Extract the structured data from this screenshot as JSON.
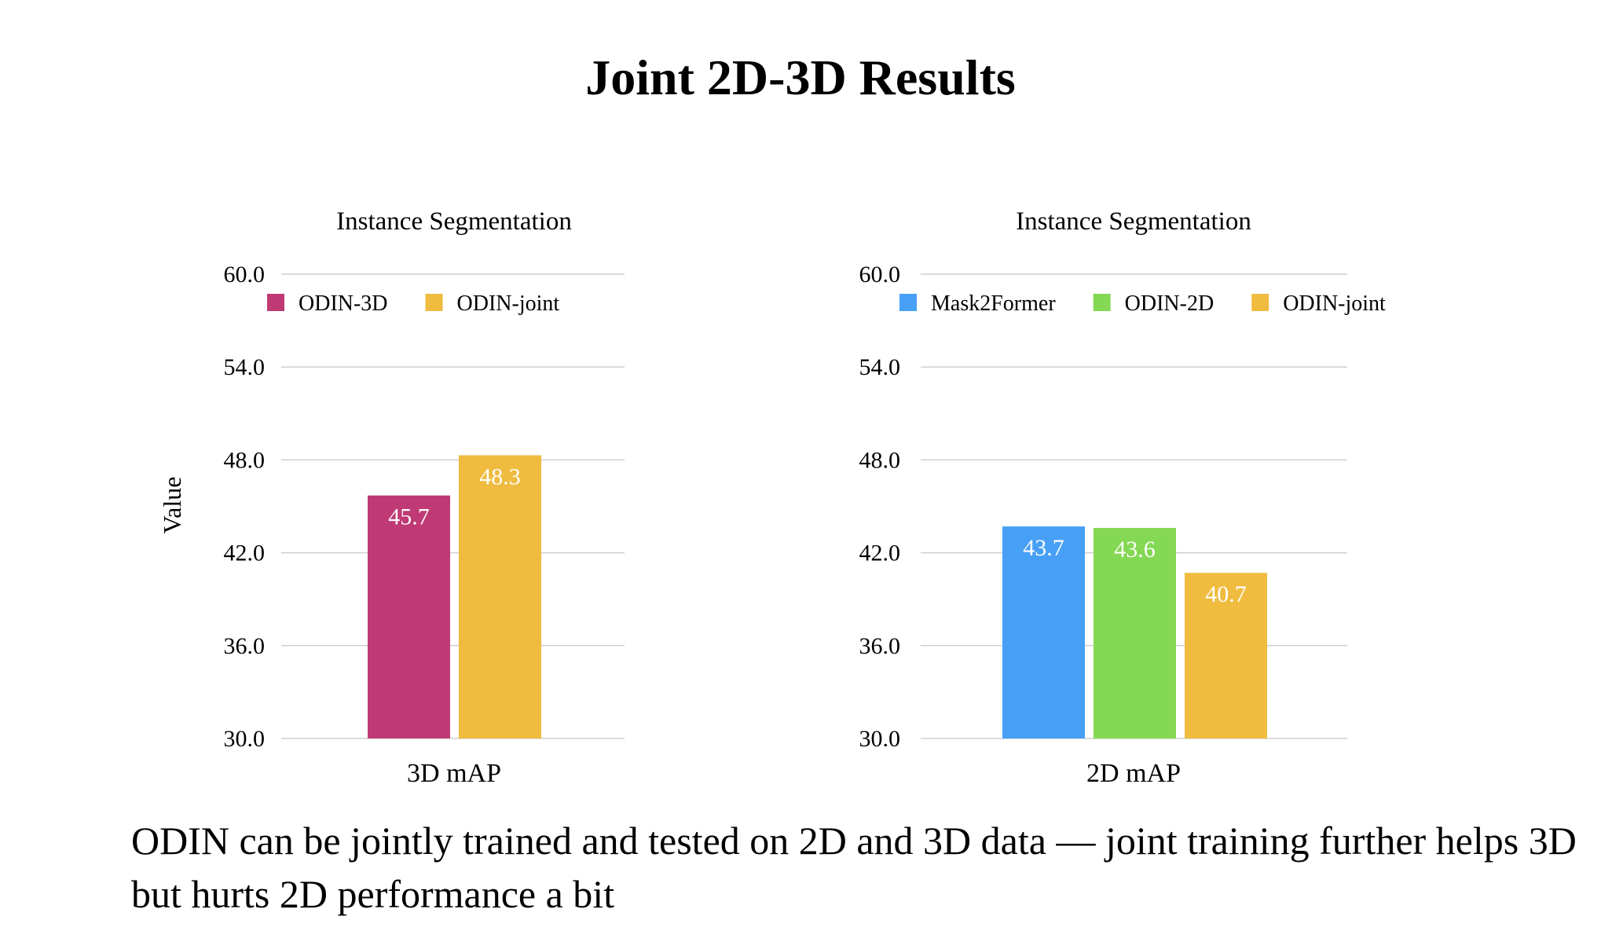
{
  "slide": {
    "title": "Joint 2D-3D Results",
    "caption": "ODIN can be jointly trained and tested on 2D and 3D data — joint training further helps 3D but hurts 2D performance a bit"
  },
  "chart_data": [
    {
      "type": "bar",
      "title": "Instance Segmentation",
      "xlabel": "3D mAP",
      "ylabel": "Value",
      "ylim": [
        30,
        60
      ],
      "yticks": [
        "60.0",
        "54.0",
        "48.0",
        "42.0",
        "36.0",
        "30.0"
      ],
      "grid": true,
      "legend_position": "top",
      "categories": [
        "3D mAP"
      ],
      "series": [
        {
          "name": "ODIN-3D",
          "color": "#bf3a75",
          "values": [
            45.7
          ],
          "label": "45.7"
        },
        {
          "name": "ODIN-joint",
          "color": "#efbc40",
          "values": [
            48.3
          ],
          "label": "48.3"
        }
      ]
    },
    {
      "type": "bar",
      "title": "Instance Segmentation",
      "xlabel": "2D mAP",
      "ylabel": "",
      "ylim": [
        30,
        60
      ],
      "yticks": [
        "60.0",
        "54.0",
        "48.0",
        "42.0",
        "36.0",
        "30.0"
      ],
      "grid": true,
      "legend_position": "top",
      "categories": [
        "2D mAP"
      ],
      "series": [
        {
          "name": "Mask2Former",
          "color": "#47a0f5",
          "values": [
            43.7
          ],
          "label": "43.7"
        },
        {
          "name": "ODIN-2D",
          "color": "#84d853",
          "values": [
            43.6
          ],
          "label": "43.6"
        },
        {
          "name": "ODIN-joint",
          "color": "#efbc40",
          "values": [
            40.7
          ],
          "label": "40.7"
        }
      ]
    }
  ]
}
